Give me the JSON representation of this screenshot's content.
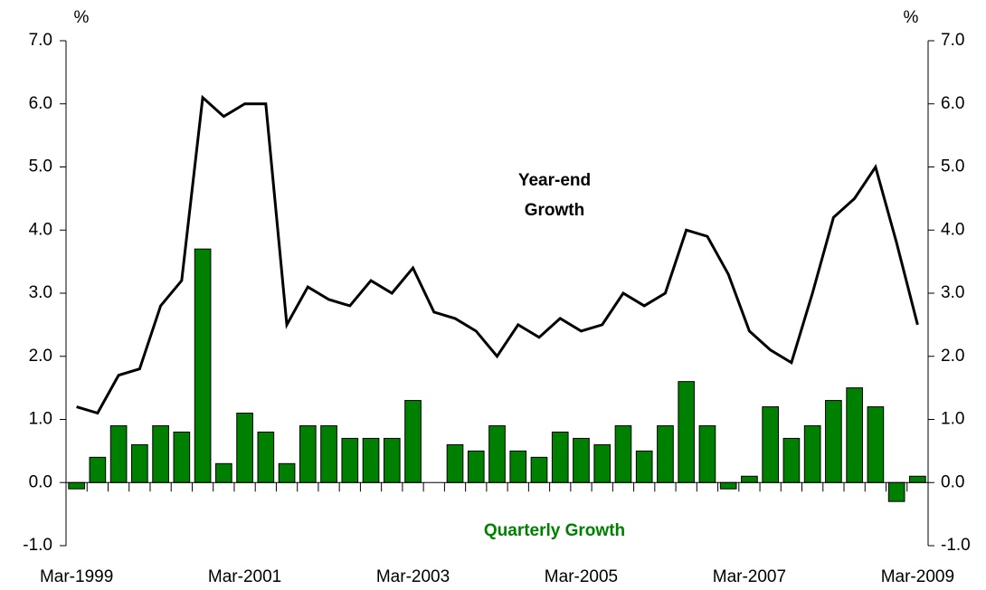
{
  "chart_data": {
    "type": "bar-line",
    "y_unit": "%",
    "y2_unit": "%",
    "categories": [
      "Mar-1999",
      null,
      null,
      null,
      null,
      null,
      null,
      null,
      "Mar-2001",
      null,
      null,
      null,
      null,
      null,
      null,
      null,
      "Mar-2003",
      null,
      null,
      null,
      null,
      null,
      null,
      null,
      "Mar-2005",
      null,
      null,
      null,
      null,
      null,
      null,
      null,
      "Mar-2007",
      null,
      null,
      null,
      null,
      null,
      null,
      null,
      "Mar-2009"
    ],
    "series": [
      {
        "name": "Quarterly Growth",
        "kind": "bar",
        "color": "#008000",
        "values": [
          -0.1,
          0.4,
          0.9,
          0.6,
          0.9,
          0.8,
          3.7,
          0.3,
          1.1,
          0.8,
          0.3,
          0.9,
          0.9,
          0.7,
          0.7,
          0.7,
          1.3,
          0,
          0.6,
          0.5,
          0.9,
          0.5,
          0.4,
          0.8,
          0.7,
          0.6,
          0.9,
          0.5,
          0.9,
          1.6,
          0.9,
          -0.1,
          0.1,
          1.2,
          0.7,
          0.9,
          1.3,
          1.5,
          1.2,
          -0.3,
          0.1
        ]
      },
      {
        "name": "Year-end Growth",
        "kind": "line",
        "color": "#000000",
        "values": [
          1.2,
          1.1,
          1.7,
          1.8,
          2.8,
          3.2,
          6.1,
          5.8,
          6.0,
          6.0,
          2.5,
          3.1,
          2.9,
          2.8,
          3.2,
          3.0,
          3.4,
          2.7,
          2.6,
          2.4,
          2.0,
          2.5,
          2.3,
          2.6,
          2.4,
          2.5,
          3.0,
          2.8,
          3.0,
          4.0,
          3.9,
          3.3,
          2.4,
          2.1,
          1.9,
          3.0,
          4.2,
          4.5,
          5.0,
          3.8,
          2.5
        ]
      }
    ],
    "annotations": [
      {
        "lines": [
          "Year-end",
          "Growth"
        ],
        "color": "#000000"
      },
      {
        "lines": [
          "Quarterly Growth"
        ],
        "color": "#008000"
      }
    ],
    "ylim": [
      -1,
      7
    ],
    "yticks": [
      {
        "value": -1,
        "label": "-1.0"
      },
      {
        "value": 0,
        "label": "0.0"
      },
      {
        "value": 1,
        "label": "1.0"
      },
      {
        "value": 2,
        "label": "2.0"
      },
      {
        "value": 3,
        "label": "3.0"
      },
      {
        "value": 4,
        "label": "4.0"
      },
      {
        "value": 5,
        "label": "5.0"
      },
      {
        "value": 6,
        "label": "6.0"
      },
      {
        "value": 7,
        "label": "7.0"
      }
    ],
    "y2lim": [
      -1,
      7
    ],
    "y2ticks": [
      {
        "value": -1,
        "label": "-1.0"
      },
      {
        "value": 0,
        "label": "0.0"
      },
      {
        "value": 1,
        "label": "1.0"
      },
      {
        "value": 2,
        "label": "2.0"
      },
      {
        "value": 3,
        "label": "3.0"
      },
      {
        "value": 4,
        "label": "4.0"
      },
      {
        "value": 5,
        "label": "5.0"
      },
      {
        "value": 6,
        "label": "6.0"
      },
      {
        "value": 7,
        "label": "7.0"
      }
    ],
    "grid": false
  }
}
